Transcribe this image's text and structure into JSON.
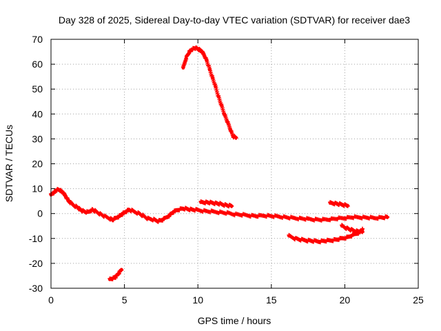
{
  "chart_data": {
    "type": "scatter",
    "title": "Day 328 of 2025, Sidereal Day-to-day VTEC variation (SDTVAR) for receiver dae3",
    "xlabel": "GPS time / hours",
    "ylabel": "SDTVAR / TECUs",
    "xlim": [
      0,
      25
    ],
    "ylim": [
      -30,
      70
    ],
    "xticks": [
      0,
      5,
      10,
      15,
      20,
      25
    ],
    "yticks": [
      -30,
      -20,
      -10,
      0,
      10,
      20,
      30,
      40,
      50,
      60,
      70
    ],
    "grid": true,
    "legend": "none",
    "marker": "cross",
    "color": "#ff0000",
    "series": [
      {
        "name": "main trace",
        "x": [
          0.0,
          0.2,
          0.4,
          0.6,
          0.8,
          1.0,
          1.2,
          1.5,
          1.8,
          2.0,
          2.2,
          2.5,
          2.8,
          3.0,
          3.3,
          3.6,
          4.0,
          4.2,
          4.5,
          4.8,
          5.0,
          5.3,
          5.6,
          6.0,
          6.3,
          6.6,
          7.0,
          7.3,
          7.6,
          8.0,
          8.3,
          8.6,
          9.0,
          9.3,
          9.6,
          10.0,
          10.5,
          11.0,
          11.5,
          12.0,
          12.5,
          13.0,
          13.5,
          14.0,
          14.5,
          15.0,
          15.5,
          16.0,
          16.5,
          17.0,
          17.5,
          18.0,
          18.5,
          19.0,
          19.5,
          20.0,
          20.5,
          21.0,
          21.5,
          22.0,
          22.5,
          22.9
        ],
        "y": [
          7.5,
          8.5,
          9.5,
          9.5,
          8.5,
          7.0,
          5.0,
          3.5,
          2.5,
          1.5,
          1.0,
          0.5,
          1.5,
          1.0,
          0.0,
          -1.0,
          -2.0,
          -2.5,
          -1.5,
          -0.5,
          0.5,
          1.5,
          1.0,
          0.0,
          -1.0,
          -2.0,
          -2.5,
          -3.0,
          -2.5,
          -1.0,
          0.5,
          1.5,
          2.0,
          1.8,
          1.6,
          1.4,
          1.0,
          0.8,
          0.5,
          0.2,
          -0.3,
          -0.5,
          -0.8,
          -1.0,
          -0.8,
          -1.0,
          -1.2,
          -1.5,
          -1.8,
          -2.0,
          -2.2,
          -2.4,
          -2.5,
          -2.3,
          -2.0,
          -1.8,
          -1.5,
          -1.5,
          -1.6,
          -1.8,
          -1.6,
          -1.5
        ]
      },
      {
        "name": "arc segment",
        "x": [
          9.0,
          9.2,
          9.4,
          9.6,
          9.8,
          10.0,
          10.2,
          10.4,
          10.6,
          10.8,
          11.0,
          11.2,
          11.4,
          11.6,
          11.8,
          12.0,
          12.2,
          12.4,
          12.6
        ],
        "y": [
          58.5,
          62.5,
          64.8,
          66.0,
          66.5,
          66.2,
          65.5,
          64.0,
          61.5,
          58.0,
          54.5,
          51.0,
          47.0,
          43.5,
          40.0,
          37.0,
          34.0,
          31.0,
          30.5
        ]
      },
      {
        "name": "short segment near 11 h",
        "x": [
          10.2,
          10.5,
          10.8,
          11.1,
          11.4,
          11.7,
          12.0,
          12.3
        ],
        "y": [
          4.5,
          4.5,
          4.4,
          4.2,
          4.0,
          3.6,
          3.3,
          3.0
        ]
      },
      {
        "name": "low segment near 4 h",
        "x": [
          4.0,
          4.2,
          4.4,
          4.6,
          4.8
        ],
        "y": [
          -26.5,
          -26.0,
          -25.5,
          -24.0,
          -22.5
        ]
      },
      {
        "name": "segment 16-21 h",
        "x": [
          16.2,
          16.6,
          17.0,
          17.4,
          17.8,
          18.2,
          18.6,
          19.0,
          19.4,
          19.8,
          20.2,
          20.6,
          21.0,
          21.2
        ],
        "y": [
          -9.0,
          -10.0,
          -10.5,
          -10.8,
          -11.0,
          -11.2,
          -11.0,
          -10.8,
          -10.5,
          -10.0,
          -9.5,
          -8.5,
          -7.5,
          -6.5
        ]
      },
      {
        "name": "segment near 20 h",
        "x": [
          19.8,
          20.1,
          20.4,
          20.7,
          21.0,
          21.2
        ],
        "y": [
          -5.0,
          -5.8,
          -6.5,
          -7.0,
          -7.2,
          -7.3
        ]
      },
      {
        "name": "short segment near 19.5 h",
        "x": [
          19.0,
          19.3,
          19.6,
          19.9,
          20.2
        ],
        "y": [
          4.2,
          4.1,
          3.8,
          3.5,
          3.2
        ]
      }
    ]
  }
}
